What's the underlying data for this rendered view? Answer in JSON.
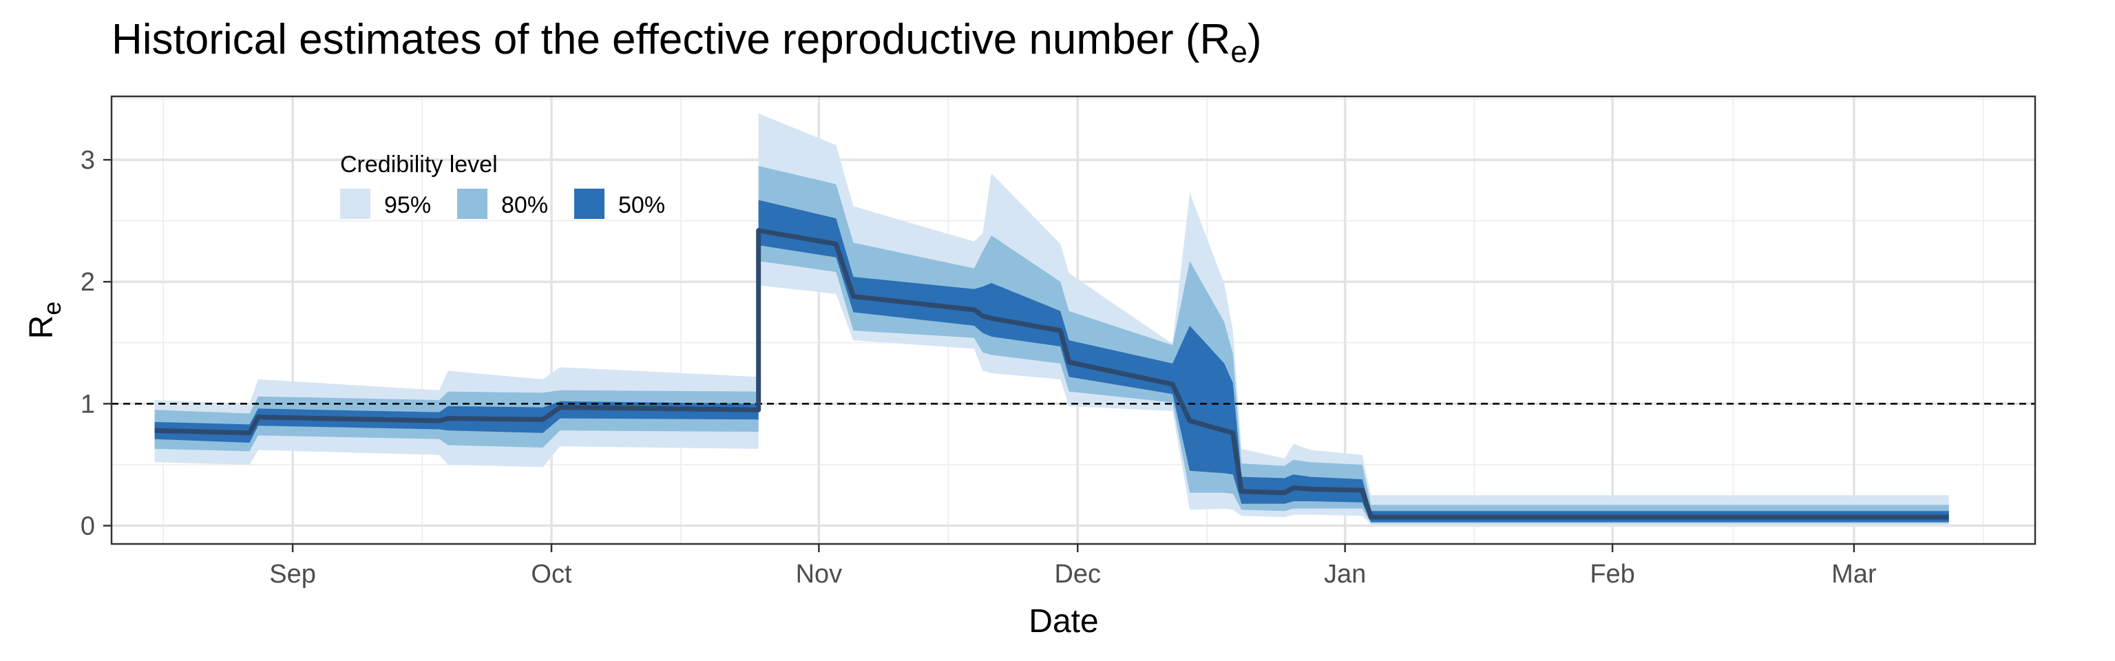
{
  "chart_data": {
    "type": "area",
    "title": {
      "main": "Historical estimates of the effective reproductive number (R",
      "sub": "e",
      "close": ")"
    },
    "xlabel": "Date",
    "ylabel": {
      "main": "R",
      "sub": "e"
    },
    "ylim": [
      -0.15,
      3.52
    ],
    "yticks": [
      0,
      1,
      2,
      3
    ],
    "xlim": [
      "2020-08-11",
      "2021-03-22"
    ],
    "xticks": [
      {
        "date": "2020-09-01",
        "label": "Sep"
      },
      {
        "date": "2020-10-01",
        "label": "Oct"
      },
      {
        "date": "2020-11-01",
        "label": "Nov"
      },
      {
        "date": "2020-12-01",
        "label": "Dec"
      },
      {
        "date": "2021-01-01",
        "label": "Jan"
      },
      {
        "date": "2021-02-01",
        "label": "Feb"
      },
      {
        "date": "2021-03-01",
        "label": "Mar"
      }
    ],
    "reference_line": 1,
    "grid": true,
    "legend": {
      "title": "Credibility level",
      "position": "top-left",
      "items": [
        {
          "label": "95%",
          "color": "#d6e5f4"
        },
        {
          "label": "80%",
          "color": "#90bfdd"
        },
        {
          "label": "50%",
          "color": "#2b6fb5"
        }
      ]
    },
    "colors": {
      "line": "#2d4a6e",
      "ci95": "#d6e5f4",
      "ci80": "#90bfdd",
      "ci50": "#2b6fb5"
    },
    "series": {
      "date": [
        "2020-08-16",
        "2020-08-27",
        "2020-08-28",
        "2020-09-18",
        "2020-09-19",
        "2020-09-30",
        "2020-10-02",
        "2020-10-25",
        "2020-10-25",
        "2020-11-03",
        "2020-11-05",
        "2020-11-19",
        "2020-11-20",
        "2020-11-21",
        "2020-11-29",
        "2020-11-30",
        "2020-12-12",
        "2020-12-14",
        "2020-12-18",
        "2020-12-19",
        "2020-12-20",
        "2020-12-25",
        "2020-12-26",
        "2020-12-28",
        "2021-01-03",
        "2021-01-04",
        "2021-03-12"
      ],
      "median": [
        0.78,
        0.76,
        0.89,
        0.86,
        0.88,
        0.87,
        0.97,
        0.95,
        2.42,
        2.31,
        1.88,
        1.77,
        1.72,
        1.7,
        1.6,
        1.34,
        1.16,
        0.86,
        0.78,
        0.76,
        0.28,
        0.27,
        0.31,
        0.3,
        0.29,
        0.07,
        0.07
      ],
      "lo50": [
        0.71,
        0.68,
        0.82,
        0.79,
        0.78,
        0.76,
        0.88,
        0.87,
        2.3,
        2.2,
        1.75,
        1.64,
        1.58,
        1.55,
        1.47,
        1.22,
        1.08,
        0.45,
        0.43,
        0.42,
        0.18,
        0.18,
        0.2,
        0.2,
        0.19,
        0.03,
        0.03
      ],
      "hi50": [
        0.85,
        0.83,
        0.96,
        0.93,
        0.98,
        0.97,
        1.02,
        1.0,
        2.67,
        2.52,
        2.04,
        1.94,
        1.96,
        1.99,
        1.76,
        1.52,
        1.33,
        1.64,
        1.33,
        1.17,
        0.4,
        0.39,
        0.42,
        0.4,
        0.38,
        0.12,
        0.12
      ],
      "lo80": [
        0.63,
        0.61,
        0.74,
        0.71,
        0.66,
        0.64,
        0.78,
        0.77,
        2.17,
        2.08,
        1.6,
        1.54,
        1.42,
        1.4,
        1.33,
        1.1,
        1.01,
        0.27,
        0.27,
        0.26,
        0.13,
        0.12,
        0.14,
        0.14,
        0.14,
        0.02,
        0.02
      ],
      "hi80": [
        0.95,
        0.92,
        1.06,
        1.03,
        1.1,
        1.09,
        1.11,
        1.1,
        2.95,
        2.8,
        2.32,
        2.11,
        2.25,
        2.38,
        2.0,
        1.76,
        1.48,
        2.17,
        1.67,
        1.41,
        0.51,
        0.49,
        0.54,
        0.52,
        0.5,
        0.17,
        0.17
      ],
      "lo95": [
        0.52,
        0.5,
        0.62,
        0.58,
        0.5,
        0.48,
        0.65,
        0.63,
        1.97,
        1.9,
        1.52,
        1.45,
        1.27,
        1.25,
        1.2,
        0.98,
        0.94,
        0.13,
        0.14,
        0.13,
        0.08,
        0.07,
        0.09,
        0.09,
        0.08,
        0.01,
        0.01
      ],
      "hi95": [
        1.03,
        1.0,
        1.2,
        1.11,
        1.27,
        1.2,
        1.3,
        1.22,
        3.38,
        3.12,
        2.62,
        2.33,
        2.4,
        2.89,
        2.31,
        2.07,
        1.49,
        2.73,
        1.98,
        1.6,
        0.63,
        0.55,
        0.67,
        0.62,
        0.58,
        0.25,
        0.25
      ]
    }
  }
}
